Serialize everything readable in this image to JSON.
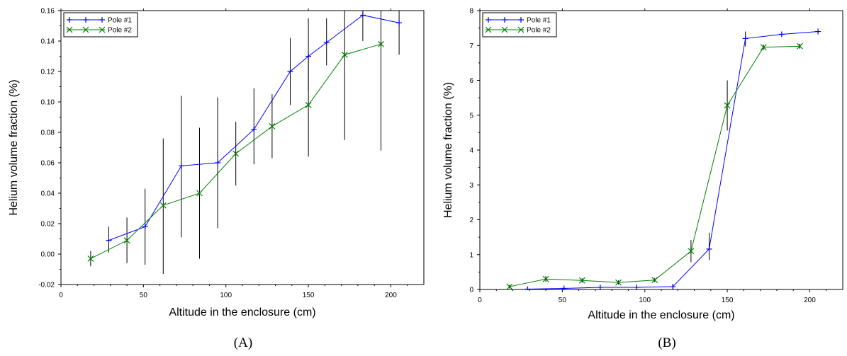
{
  "chart_data": [
    {
      "type": "line",
      "panel_label": "(A)",
      "xlabel": "Altitude in the enclosure (cm)",
      "ylabel": "Helium volume fraction (%)",
      "xlim": [
        0,
        220
      ],
      "ylim": [
        -0.02,
        0.16
      ],
      "x_ticks": [
        "0",
        "50",
        "100",
        "150",
        "200"
      ],
      "y_ticks": [
        "-0.02",
        "0.00",
        "0.02",
        "0.04",
        "0.06",
        "0.08",
        "0.10",
        "0.12",
        "0.14",
        "0.16"
      ],
      "grid": false,
      "legend_position": "top-left",
      "series": [
        {
          "name": "Pole #1",
          "color": "#0000ff",
          "marker": "plus",
          "x": [
            29,
            51,
            73,
            95,
            117,
            139,
            150,
            161,
            183,
            205
          ],
          "y": [
            0.009,
            0.018,
            0.058,
            0.06,
            0.082,
            0.12,
            0.13,
            0.139,
            0.157,
            0.152
          ],
          "err_low": [
            0.001,
            -0.007,
            0.011,
            0.017,
            0.059,
            0.098,
            0.107,
            0.124,
            0.14,
            0.131
          ],
          "err_high": [
            0.018,
            0.043,
            0.104,
            0.103,
            0.109,
            0.142,
            0.155,
            0.155,
            0.16,
            0.16
          ]
        },
        {
          "name": "Pole #2",
          "color": "#008000",
          "marker": "x",
          "x": [
            18,
            40,
            62,
            84,
            106,
            128,
            150,
            172,
            194
          ],
          "y": [
            -0.003,
            0.009,
            0.032,
            0.04,
            0.066,
            0.084,
            0.098,
            0.131,
            0.138
          ],
          "err_low": [
            -0.008,
            -0.006,
            -0.013,
            -0.003,
            0.045,
            0.063,
            0.064,
            0.075,
            0.068
          ],
          "err_high": [
            0.002,
            0.024,
            0.076,
            0.083,
            0.087,
            0.105,
            0.132,
            0.16,
            0.16
          ]
        }
      ]
    },
    {
      "type": "line",
      "panel_label": "(B)",
      "xlabel": "Altitude in the enclosure (cm)",
      "ylabel": "Helium volume fraction (%)",
      "xlim": [
        0,
        220
      ],
      "ylim": [
        0,
        8
      ],
      "x_ticks": [
        "0",
        "50",
        "100",
        "150",
        "200"
      ],
      "y_ticks": [
        "0",
        "1",
        "2",
        "3",
        "4",
        "5",
        "6",
        "7",
        "8"
      ],
      "grid": false,
      "legend_position": "top-left",
      "series": [
        {
          "name": "Pole #1",
          "color": "#0000ff",
          "marker": "plus",
          "x": [
            29,
            51,
            73,
            95,
            117,
            139,
            161,
            183,
            205
          ],
          "y": [
            0.01,
            0.03,
            0.06,
            0.06,
            0.08,
            1.16,
            7.2,
            7.32,
            7.4
          ],
          "err_low": [
            0.0,
            0.0,
            0.0,
            0.0,
            0.0,
            0.85,
            6.97,
            7.25,
            7.33
          ],
          "err_high": [
            0.05,
            0.08,
            0.12,
            0.12,
            0.15,
            1.63,
            7.4,
            7.4,
            7.47
          ]
        },
        {
          "name": "Pole #2",
          "color": "#008000",
          "marker": "x",
          "x": [
            18,
            40,
            62,
            84,
            106,
            128,
            150,
            172,
            194
          ],
          "y": [
            0.08,
            0.3,
            0.26,
            0.2,
            0.27,
            1.1,
            5.28,
            6.95,
            6.98
          ],
          "err_low": [
            0.03,
            0.22,
            0.2,
            0.14,
            0.21,
            0.78,
            4.56,
            6.88,
            6.91
          ],
          "err_high": [
            0.13,
            0.38,
            0.32,
            0.26,
            0.33,
            1.42,
            6.0,
            7.02,
            7.05
          ]
        }
      ]
    }
  ]
}
